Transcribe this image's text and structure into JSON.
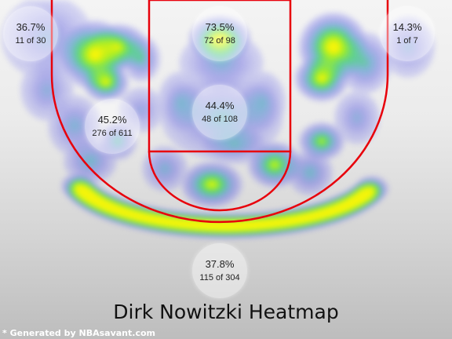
{
  "chart_data": {
    "type": "heatmap",
    "title": "Dirk Nowitzki Heatmap",
    "zones": [
      {
        "id": "left-corner",
        "pct": "36.7%",
        "made": 11,
        "att": 30,
        "label": "11 of 30"
      },
      {
        "id": "paint-top",
        "pct": "73.5%",
        "made": 72,
        "att": 98,
        "label": "72 of 98"
      },
      {
        "id": "right-corner",
        "pct": "14.3%",
        "made": 1,
        "att": 7,
        "label": "1 of 7"
      },
      {
        "id": "left-midrange",
        "pct": "45.2%",
        "made": 276,
        "att": 611,
        "label": "276 of 611"
      },
      {
        "id": "paint-mid",
        "pct": "44.4%",
        "made": 48,
        "att": 108,
        "label": "48 of 108"
      },
      {
        "id": "three-point",
        "pct": "37.8%",
        "made": 115,
        "att": 304,
        "label": "115 of 304"
      }
    ],
    "colors": {
      "line": "#e8000b",
      "low": "#6f6fe8",
      "mid": "#33c97a",
      "high": "#f0f00a"
    }
  },
  "footer": {
    "credit": "* Generated by NBAsavant.com"
  }
}
